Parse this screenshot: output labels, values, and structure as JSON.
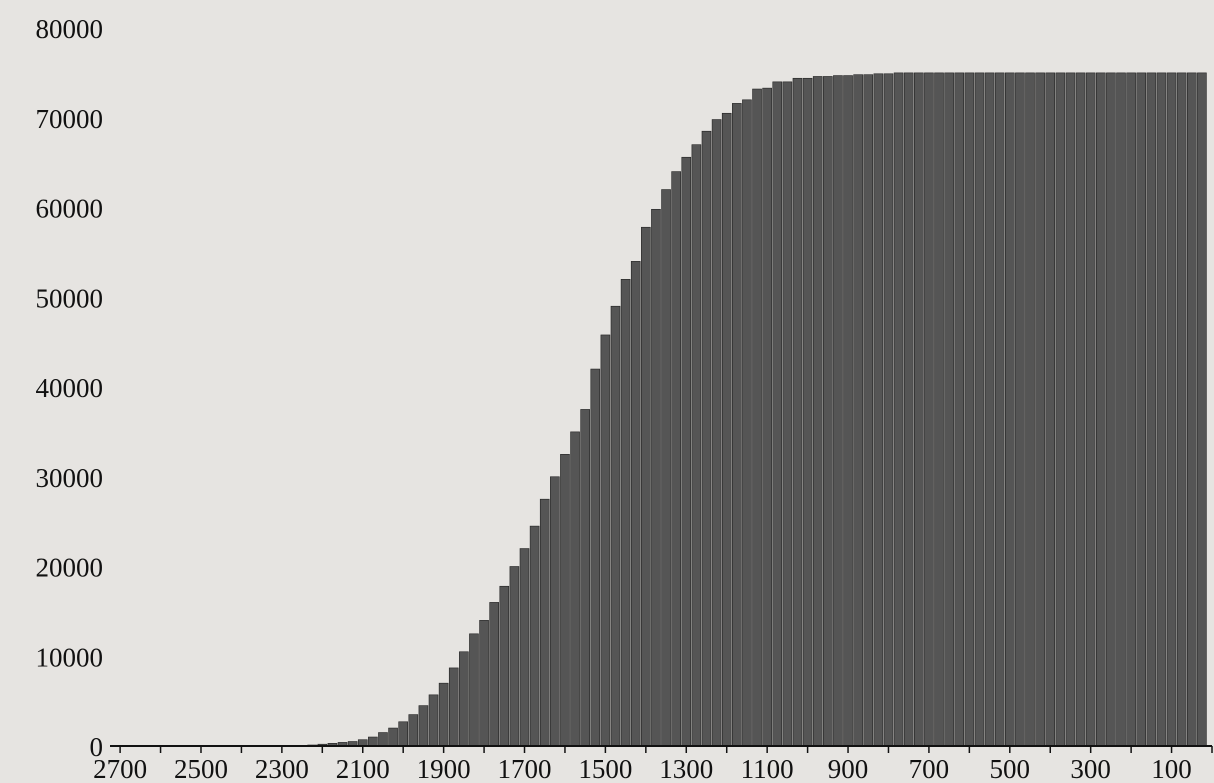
{
  "chart_data": {
    "type": "bar",
    "title": "",
    "xlabel": "",
    "ylabel": "",
    "ylim": [
      0,
      80000
    ],
    "yticks": [
      0,
      10000,
      20000,
      30000,
      40000,
      50000,
      60000,
      70000,
      80000
    ],
    "xticks": [
      "2700",
      "2500",
      "2300",
      "2100",
      "1900",
      "1700",
      "1500",
      "1300",
      "1100",
      "900",
      "700",
      "500",
      "300",
      "100"
    ],
    "x_axis_reversed": true,
    "grid": false,
    "legend": "none",
    "bar_color": "#555555",
    "categories": [
      2600,
      2575,
      2550,
      2525,
      2500,
      2475,
      2450,
      2425,
      2400,
      2375,
      2350,
      2325,
      2300,
      2275,
      2250,
      2225,
      2200,
      2175,
      2150,
      2125,
      2100,
      2075,
      2050,
      2025,
      2000,
      1975,
      1950,
      1925,
      1900,
      1875,
      1850,
      1825,
      1800,
      1775,
      1750,
      1725,
      1700,
      1675,
      1650,
      1625,
      1600,
      1575,
      1550,
      1525,
      1500,
      1475,
      1450,
      1425,
      1400,
      1375,
      1350,
      1325,
      1300,
      1275,
      1250,
      1225,
      1200,
      1175,
      1150,
      1125,
      1100,
      1075,
      1050,
      1025,
      1000,
      975,
      950,
      925,
      900,
      875,
      850,
      825,
      800,
      775,
      750,
      725,
      700,
      675,
      650,
      625,
      600,
      575,
      550,
      525,
      500,
      475,
      450,
      425,
      400,
      375,
      350,
      325,
      300,
      275,
      250,
      225,
      200,
      175,
      150,
      125,
      100,
      75,
      50,
      25
    ],
    "values": [
      0,
      0,
      0,
      0,
      0,
      0,
      0,
      0,
      0,
      0,
      0,
      0,
      0,
      0,
      0,
      100,
      200,
      300,
      400,
      500,
      700,
      1000,
      1500,
      2000,
      2700,
      3500,
      4500,
      5700,
      7000,
      8700,
      10500,
      12500,
      14000,
      16000,
      17800,
      20000,
      22000,
      24500,
      27500,
      30000,
      32500,
      35000,
      37500,
      42000,
      45800,
      49000,
      52000,
      54000,
      57800,
      59800,
      62000,
      64000,
      65600,
      67000,
      68500,
      69800,
      70500,
      71600,
      72000,
      73200,
      73300,
      74000,
      74000,
      74400,
      74400,
      74600,
      74600,
      74700,
      74700,
      74800,
      74800,
      74900,
      74900,
      75000,
      75000,
      75000,
      75000,
      75000,
      75000,
      75000,
      75000,
      75000,
      75000,
      75000,
      75000,
      75000,
      75000,
      75000,
      75000,
      75000,
      75000,
      75000,
      75000,
      75000,
      75000,
      75000,
      75000,
      75000,
      75000,
      75000,
      75000,
      75000,
      75000,
      75000
    ]
  }
}
